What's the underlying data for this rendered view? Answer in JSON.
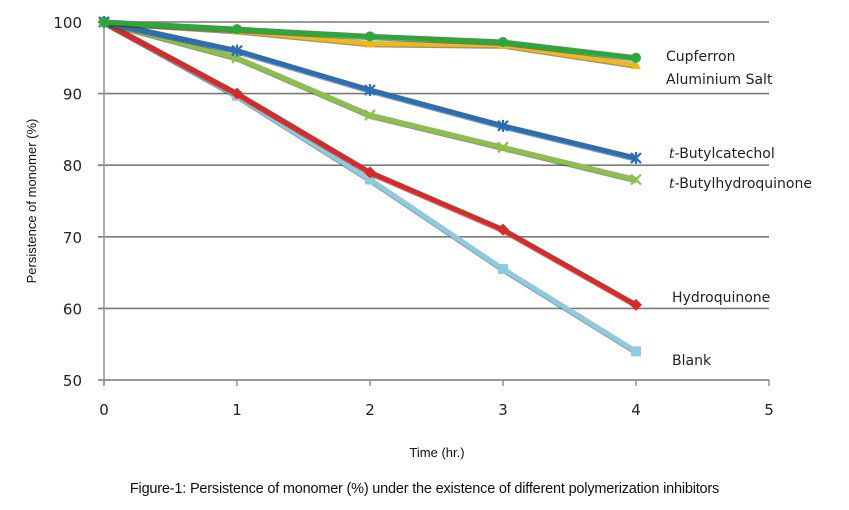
{
  "chart_data": {
    "type": "line",
    "title": "",
    "xlabel": "Time (hr.)",
    "ylabel": "Persistence of monomer (%)",
    "xlim": [
      0,
      5
    ],
    "ylim": [
      50,
      100
    ],
    "xticks": [
      0,
      1,
      2,
      3,
      4,
      5
    ],
    "yticks": [
      50,
      60,
      70,
      80,
      90,
      100
    ],
    "grid": "horizontal",
    "legend": "right (labels at line ends)",
    "x": [
      0,
      1,
      2,
      3,
      4
    ],
    "series": [
      {
        "name": "Cupferron",
        "label": "Cupferron",
        "label_italic_prefix": "",
        "color": "#2ca83a",
        "marker": "circle",
        "values": [
          100,
          99,
          98,
          97.2,
          95
        ]
      },
      {
        "name": "Aluminium Salt",
        "label": "Aluminium Salt",
        "label_italic_prefix": "",
        "color": "#f0b820",
        "marker": "triangle",
        "values": [
          100,
          98.8,
          97,
          96.8,
          94
        ]
      },
      {
        "name": "t-Butylcatechol",
        "label": "-Butylcatechol",
        "label_italic_prefix": "t",
        "color": "#2a6fb5",
        "marker": "star",
        "values": [
          100,
          96,
          90.5,
          85.5,
          81
        ]
      },
      {
        "name": "t-Butylhydroquinone",
        "label": "-Butylhydroquinone",
        "label_italic_prefix": "t",
        "color": "#8cc04a",
        "marker": "x",
        "values": [
          100,
          95,
          87,
          82.5,
          78
        ]
      },
      {
        "name": "Hydroquinone",
        "label": "Hydroquinone",
        "label_italic_prefix": "",
        "color": "#d92a2a",
        "marker": "diamond",
        "values": [
          100,
          90,
          79,
          71,
          60.5
        ]
      },
      {
        "name": "Blank",
        "label": "Blank",
        "label_italic_prefix": "",
        "color": "#8ccbe0",
        "marker": "square",
        "values": [
          100,
          89.7,
          78,
          65.5,
          54
        ]
      }
    ]
  },
  "caption": "Figure-1: Persistence of monomer (%) under the existence of different polymerization inhibitors"
}
